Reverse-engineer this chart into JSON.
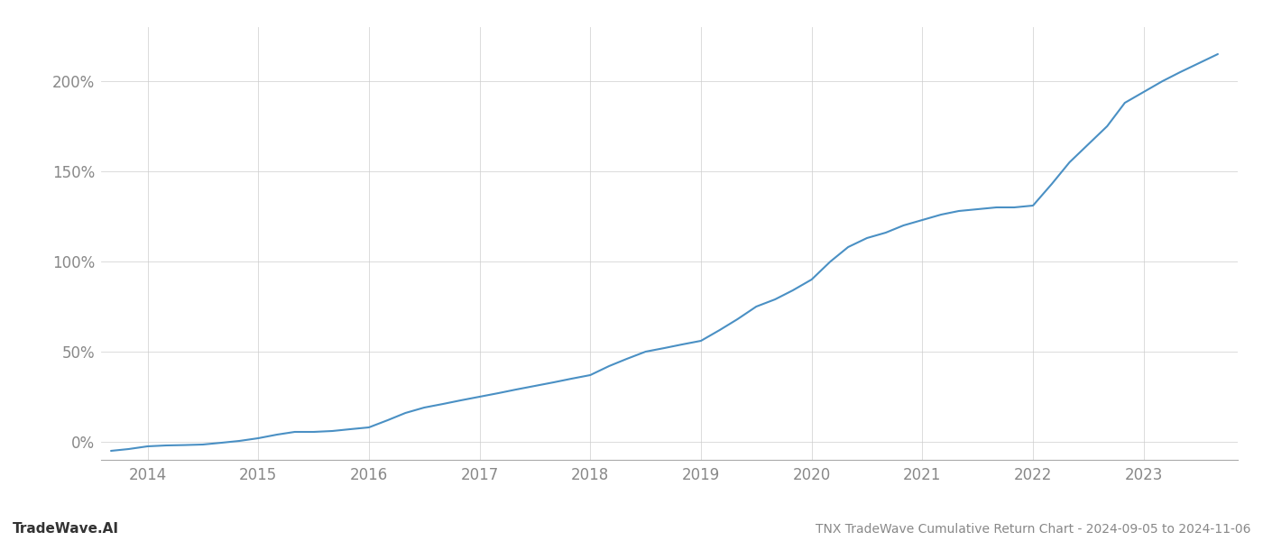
{
  "title_bottom": "TNX TradeWave Cumulative Return Chart - 2024-09-05 to 2024-11-06",
  "watermark": "TradeWave.AI",
  "line_color": "#4a90c4",
  "background_color": "#ffffff",
  "grid_color": "#cccccc",
  "text_color": "#888888",
  "x_years": [
    2014,
    2015,
    2016,
    2017,
    2018,
    2019,
    2020,
    2021,
    2022,
    2023
  ],
  "y_ticks": [
    0,
    50,
    100,
    150,
    200
  ],
  "y_labels": [
    "0%",
    "50%",
    "100%",
    "150%",
    "200%"
  ],
  "data_x": [
    2013.67,
    2013.83,
    2014.0,
    2014.17,
    2014.33,
    2014.5,
    2014.67,
    2014.83,
    2015.0,
    2015.17,
    2015.33,
    2015.5,
    2015.67,
    2015.83,
    2016.0,
    2016.17,
    2016.33,
    2016.5,
    2016.67,
    2016.83,
    2017.0,
    2017.17,
    2017.33,
    2017.5,
    2017.67,
    2017.83,
    2018.0,
    2018.17,
    2018.33,
    2018.5,
    2018.67,
    2018.83,
    2019.0,
    2019.17,
    2019.33,
    2019.5,
    2019.67,
    2019.83,
    2020.0,
    2020.17,
    2020.33,
    2020.5,
    2020.67,
    2020.83,
    2021.0,
    2021.17,
    2021.33,
    2021.5,
    2021.67,
    2021.83,
    2022.0,
    2022.17,
    2022.33,
    2022.5,
    2022.67,
    2022.83,
    2023.0,
    2023.17,
    2023.33,
    2023.5,
    2023.67
  ],
  "data_y": [
    -5,
    -4,
    -2.5,
    -2,
    -1.8,
    -1.5,
    -0.5,
    0.5,
    2,
    4,
    5.5,
    5.5,
    6,
    7,
    8,
    12,
    16,
    19,
    21,
    23,
    25,
    27,
    29,
    31,
    33,
    35,
    37,
    42,
    46,
    50,
    52,
    54,
    56,
    62,
    68,
    75,
    79,
    84,
    90,
    100,
    108,
    113,
    116,
    120,
    123,
    126,
    128,
    129,
    130,
    130,
    131,
    143,
    155,
    165,
    175,
    188,
    194,
    200,
    205,
    210,
    215
  ],
  "xlim": [
    2013.58,
    2023.85
  ],
  "ylim": [
    -10,
    230
  ]
}
